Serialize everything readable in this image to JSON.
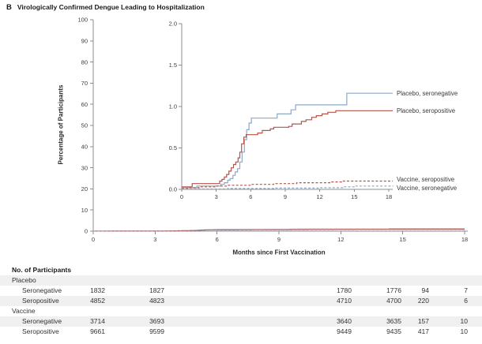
{
  "chart_data": {
    "type": "line",
    "subtype": "step-cumulative-incidence-with-inset",
    "panel_label": "B",
    "title": "Virologically Confirmed Dengue Leading to Hospitalization",
    "xlabel": "Months since First Vaccination",
    "ylabel": "Percentage of Participants",
    "legend_position": "right",
    "grid": false,
    "main_axis": {
      "xlim": [
        0,
        18
      ],
      "ylim": [
        0,
        100
      ],
      "x_ticks": [
        0,
        3,
        6,
        9,
        12,
        15,
        18
      ],
      "y_ticks": [
        0,
        10,
        20,
        30,
        40,
        50,
        60,
        70,
        80,
        90,
        100
      ]
    },
    "inset_axis": {
      "xlim": [
        0,
        18
      ],
      "ylim": [
        0,
        2.0
      ],
      "x_ticks": [
        0,
        3,
        6,
        9,
        12,
        15,
        18
      ],
      "y_ticks": [
        "0.0",
        "0.5",
        "1.0",
        "1.5",
        "2.0"
      ]
    },
    "colors": {
      "placebo": "#8ea8c6",
      "vaccine_red": "#b4544b",
      "axis": "#8c8c8c",
      "tick_text": "#3d3d3d"
    },
    "series": [
      {
        "name": "Placebo, seronegative",
        "color": "#8ea8c6",
        "dashed": false,
        "points": [
          [
            0,
            0.02
          ],
          [
            1.3,
            0.02
          ],
          [
            1.31,
            0.04
          ],
          [
            3.2,
            0.04
          ],
          [
            3.4,
            0.06
          ],
          [
            3.7,
            0.08
          ],
          [
            4.0,
            0.11
          ],
          [
            4.2,
            0.13
          ],
          [
            4.45,
            0.17
          ],
          [
            4.65,
            0.21
          ],
          [
            4.85,
            0.25
          ],
          [
            5.05,
            0.33
          ],
          [
            5.25,
            0.45
          ],
          [
            5.45,
            0.6
          ],
          [
            5.65,
            0.72
          ],
          [
            5.85,
            0.8
          ],
          [
            6.05,
            0.86
          ],
          [
            8.1,
            0.86
          ],
          [
            8.3,
            0.91
          ],
          [
            9.2,
            0.91
          ],
          [
            9.5,
            0.96
          ],
          [
            9.9,
            1.02
          ],
          [
            14.2,
            1.02
          ],
          [
            14.35,
            1.16
          ],
          [
            18.35,
            1.16
          ]
        ]
      },
      {
        "name": "Placebo, seropositive",
        "color": "#b4544b",
        "dashed": false,
        "points": [
          [
            0,
            0.03
          ],
          [
            0.9,
            0.03
          ],
          [
            0.91,
            0.07
          ],
          [
            3.1,
            0.07
          ],
          [
            3.3,
            0.1
          ],
          [
            3.5,
            0.12
          ],
          [
            3.7,
            0.15
          ],
          [
            3.9,
            0.18
          ],
          [
            4.1,
            0.22
          ],
          [
            4.3,
            0.26
          ],
          [
            4.5,
            0.3
          ],
          [
            4.7,
            0.33
          ],
          [
            4.9,
            0.38
          ],
          [
            5.05,
            0.45
          ],
          [
            5.2,
            0.55
          ],
          [
            5.4,
            0.63
          ],
          [
            5.6,
            0.66
          ],
          [
            6.6,
            0.68
          ],
          [
            7.0,
            0.71
          ],
          [
            7.7,
            0.73
          ],
          [
            8.0,
            0.75
          ],
          [
            9.3,
            0.76
          ],
          [
            9.6,
            0.79
          ],
          [
            10.4,
            0.82
          ],
          [
            10.8,
            0.84
          ],
          [
            11.3,
            0.87
          ],
          [
            11.7,
            0.89
          ],
          [
            12.2,
            0.91
          ],
          [
            12.7,
            0.93
          ],
          [
            13.4,
            0.95
          ],
          [
            18.35,
            0.95
          ]
        ]
      },
      {
        "name": "Vaccine, seropositive",
        "color": "#b4544b",
        "dashed": true,
        "points": [
          [
            0,
            0.01
          ],
          [
            0.5,
            0.02
          ],
          [
            1.5,
            0.03
          ],
          [
            3,
            0.04
          ],
          [
            4,
            0.05
          ],
          [
            6,
            0.06
          ],
          [
            8,
            0.07
          ],
          [
            10,
            0.08
          ],
          [
            12,
            0.08
          ],
          [
            13,
            0.09
          ],
          [
            14,
            0.1
          ],
          [
            18.35,
            0.1
          ]
        ]
      },
      {
        "name": "Vaccine, seronegative",
        "color": "#8ea8c6",
        "dashed": true,
        "points": [
          [
            0,
            0.005
          ],
          [
            4,
            0.01
          ],
          [
            8,
            0.015
          ],
          [
            12,
            0.02
          ],
          [
            14,
            0.03
          ],
          [
            15,
            0.04
          ],
          [
            18.35,
            0.045
          ]
        ]
      }
    ]
  },
  "participants_table": {
    "title": "No. of Participants",
    "groups": [
      {
        "name": "Placebo",
        "rows": [
          {
            "label": "Seronegative",
            "values": [
              "1832",
              "1827",
              "1780",
              "1776",
              "94",
              "7"
            ]
          },
          {
            "label": "Seropositive",
            "values": [
              "4852",
              "4823",
              "4710",
              "4700",
              "220",
              "6"
            ]
          }
        ]
      },
      {
        "name": "Vaccine",
        "rows": [
          {
            "label": "Seronegative",
            "values": [
              "3714",
              "3693",
              "3640",
              "3635",
              "157",
              "10"
            ]
          },
          {
            "label": "Seropositive",
            "values": [
              "9661",
              "9599",
              "9449",
              "9435",
              "417",
              "10"
            ]
          }
        ]
      }
    ]
  }
}
